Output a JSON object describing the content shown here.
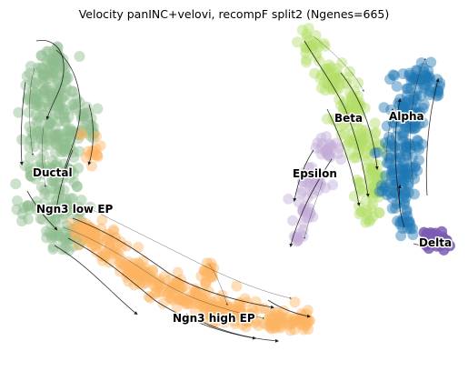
{
  "chart_data": {
    "type": "scatter",
    "title": "Velocity panINC+velovi, recompF split2 (Ngenes=665)",
    "xlabel": "",
    "ylabel": "",
    "axes_visible": false,
    "grid": false,
    "legend": "none (labels placed on clusters)",
    "streamlines": true,
    "clusters": [
      {
        "name": "Ductal",
        "color": "#8fbc8f"
      },
      {
        "name": "Ngn3 low EP",
        "color": "#8fbc8f"
      },
      {
        "name": "Ngn3 high EP",
        "color": "#fdb462"
      },
      {
        "name": "Epsilon",
        "color": "#c3aed6"
      },
      {
        "name": "Beta",
        "color": "#b3de69"
      },
      {
        "name": "Alpha",
        "color": "#1f77b4"
      },
      {
        "name": "Delta",
        "color": "#7b5cb3"
      }
    ]
  }
}
